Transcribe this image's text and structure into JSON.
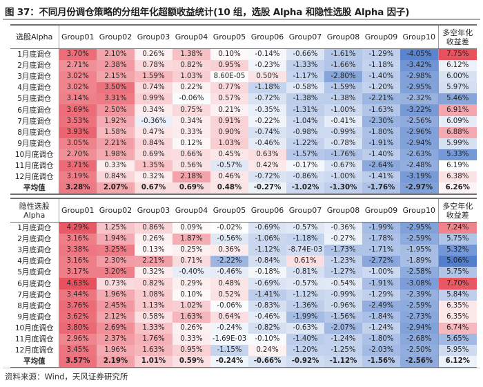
{
  "title": "图 37：不同月份调仓策略的分组年化超额收益统计(10 组，选股 Alpha 和隐性选股 Alpha 因子)",
  "source": "资料来源：Wind，天风证券研究所",
  "colors": {
    "positive_max": "#e8525f",
    "negative_max": "#4a78c9",
    "neutral": "#ffffff"
  },
  "tables": [
    {
      "corner": "选股Alpha",
      "columns": [
        "Group01",
        "Group02",
        "Group03",
        "Group04",
        "Group05",
        "Group06",
        "Group07",
        "Group08",
        "Group09",
        "Group10",
        "多空年化收益差"
      ],
      "rows": [
        {
          "label": "1月底调仓",
          "values": [
            "3.70%",
            "2.10%",
            "0.26%",
            "1.38%",
            "0.10%",
            "-0.14%",
            "-0.66%",
            "-1.61%",
            "-1.29%",
            "-4.05%",
            "7.75%"
          ]
        },
        {
          "label": "2月底调仓",
          "values": [
            "2.71%",
            "2.38%",
            "0.78%",
            "0.82%",
            "0.95%",
            "-0.23%",
            "-1.33%",
            "-1.66%",
            "-1.18%",
            "-3.42%",
            "6.12%"
          ]
        },
        {
          "label": "3月底调仓",
          "values": [
            "3.02%",
            "2.15%",
            "1.59%",
            "1.03%",
            "8.60E-05",
            "0.50%",
            "-1.17%",
            "-2.80%",
            "-1.40%",
            "-2.98%",
            "6.00%"
          ]
        },
        {
          "label": "4月底调仓",
          "values": [
            "3.02%",
            "3.50%",
            "0.74%",
            "0.22%",
            "0.77%",
            "-1.18%",
            "-0.58%",
            "-1.59%",
            "-1.20%",
            "-2.95%",
            "5.97%"
          ]
        },
        {
          "label": "5月底调仓",
          "values": [
            "3.14%",
            "3.31%",
            "0.99%",
            "-0.06%",
            "0.57%",
            "-0.72%",
            "-1.38%",
            "-1.38%",
            "-2.21%",
            "-2.32%",
            "5.46%"
          ]
        },
        {
          "label": "6月底调仓",
          "values": [
            "3.69%",
            "2.50%",
            "0.34%",
            "0.75%",
            "0.21%",
            "-0.35%",
            "-1.31%",
            "-1.00%",
            "-1.63%",
            "-3.22%",
            "6.91%"
          ]
        },
        {
          "label": "7月底调仓",
          "values": [
            "3.53%",
            "1.92%",
            "-0.36%",
            "0.34%",
            "0.91%",
            "-0.22%",
            "-1.04%",
            "-0.41%",
            "-2.30%",
            "-2.56%",
            "6.09%"
          ]
        },
        {
          "label": "8月底调仓",
          "values": [
            "3.93%",
            "1.58%",
            "0.47%",
            "0.33%",
            "0.90%",
            "-0.74%",
            "-0.98%",
            "-0.99%",
            "-1.80%",
            "-2.96%",
            "6.88%"
          ]
        },
        {
          "label": "9月底调仓",
          "values": [
            "3.05%",
            "2.21%",
            "0.84%",
            "0.12%",
            "1.03%",
            "-0.46%",
            "-1.22%",
            "-0.78%",
            "-1.91%",
            "-2.94%",
            "5.99%"
          ]
        },
        {
          "label": "10月底调仓",
          "values": [
            "2.70%",
            "1.98%",
            "0.69%",
            "0.66%",
            "0.45%",
            "0.63%",
            "-1.57%",
            "-1.76%",
            "-1.40%",
            "-2.63%",
            "5.33%"
          ]
        },
        {
          "label": "11月底调仓",
          "values": [
            "3.71%",
            "0.33%",
            "1.35%",
            "0.56%",
            "-0.57%",
            "0.42%",
            "-0.17%",
            "-0.67%",
            "-2.64%",
            "-2.48%",
            "6.19%"
          ]
        },
        {
          "label": "12月底调仓",
          "values": [
            "3.19%",
            "0.84%",
            "0.32%",
            "2.18%",
            "0.46%",
            "-0.72%",
            "-0.86%",
            "-1.00%",
            "-1.41%",
            "-3.19%",
            "6.38%"
          ]
        }
      ],
      "average": {
        "label": "平均值",
        "values": [
          "3.28%",
          "2.07%",
          "0.67%",
          "0.69%",
          "0.48%",
          "-0.27%",
          "-1.02%",
          "-1.30%",
          "-1.76%",
          "-2.97%",
          "6.26%"
        ]
      }
    },
    {
      "corner": "隐性选股Alpha",
      "columns": [
        "Group01",
        "Group02",
        "Group03",
        "Group04",
        "Group05",
        "Group06",
        "Group07",
        "Group08",
        "Group09",
        "Group10",
        "多空年化收益差"
      ],
      "rows": [
        {
          "label": "1月底调仓",
          "values": [
            "4.29%",
            "1.25%",
            "0.86%",
            "0.09%",
            "-0.02%",
            "-0.69%",
            "-0.57%",
            "-0.36%",
            "-1.99%",
            "-2.95%",
            "7.24%"
          ]
        },
        {
          "label": "2月底调仓",
          "values": [
            "3.16%",
            "1.94%",
            "0.26%",
            "1.87%",
            "-0.56%",
            "-1.06%",
            "-1.18%",
            "-0.27%",
            "-1.78%",
            "-2.59%",
            "5.75%"
          ]
        },
        {
          "label": "3月底调仓",
          "values": [
            "3.38%",
            "3.25%",
            "0.13%",
            "0.25%",
            "0.36%",
            "-1.12%",
            "-8.74E-03",
            "-1.73%",
            "-1.71%",
            "-1.95%",
            "5.32%"
          ]
        },
        {
          "label": "4月底调仓",
          "values": [
            "3.16%",
            "2.30%",
            "2.21%",
            "0.71%",
            "-2.22%",
            "-0.84%",
            "0.61%",
            "-1.23%",
            "-2.72%",
            "-1.89%",
            "5.06%"
          ]
        },
        {
          "label": "5月底调仓",
          "values": [
            "3.17%",
            "3.20%",
            "0.32%",
            "-0.40%",
            "-0.46%",
            "-0.18%",
            "-0.81%",
            "-1.27%",
            "-1.00%",
            "-2.58%",
            "5.75%"
          ]
        },
        {
          "label": "6月底调仓",
          "values": [
            "4.63%",
            "0.73%",
            "0.82%",
            "0.29%",
            "0.48%",
            "-0.69%",
            "-0.57%",
            "-0.54%",
            "-1.91%",
            "-3.08%",
            "7.70%"
          ]
        },
        {
          "label": "7月底调仓",
          "values": [
            "3.44%",
            "1.96%",
            "1.08%",
            "0.10%",
            "0.52%",
            "-1.41%",
            "-1.12%",
            "-0.99%",
            "-1.29%",
            "-2.39%",
            "5.84%"
          ]
        },
        {
          "label": "8月底调仓",
          "values": [
            "3.76%",
            "2.45%",
            "1.13%",
            "1.02%",
            "-0.06%",
            "-0.83%",
            "-1.36%",
            "-0.96%",
            "-2.49%",
            "-2.59%",
            "6.35%"
          ]
        },
        {
          "label": "9月底调仓",
          "values": [
            "3.62%",
            "2.12%",
            "0.58%",
            "1.63%",
            "0.64%",
            "-0.46%",
            "-1.99%",
            "-1.56%",
            "-1.84%",
            "-2.73%",
            "6.35%"
          ]
        },
        {
          "label": "10月底调仓",
          "values": [
            "3.80%",
            "2.69%",
            "1.33%",
            "0.26%",
            "-0.24%",
            "-0.82%",
            "-0.63%",
            "-2.07%",
            "-1.24%",
            "-2.94%",
            "6.74%"
          ]
        },
        {
          "label": "11月底调仓",
          "values": [
            "2.96%",
            "2.37%",
            "1.76%",
            "0.33%",
            "-1.69E-03",
            "-0.10%",
            "-1.40%",
            "-1.24%",
            "-1.80%",
            "-2.68%",
            "5.65%"
          ]
        },
        {
          "label": "12月底调仓",
          "values": [
            "3.45%",
            "1.96%",
            "1.63%",
            "0.95%",
            "-1.15%",
            "0.24%",
            "-1.20%",
            "-1.25%",
            "-2.03%",
            "-2.50%",
            "5.95%"
          ]
        }
      ],
      "average": {
        "label": "平均值",
        "values": [
          "3.57%",
          "2.19%",
          "1.01%",
          "0.59%",
          "-0.24%",
          "-0.66%",
          "-0.92%",
          "-1.12%",
          "-1.56%",
          "-2.56%",
          "6.12%"
        ]
      }
    }
  ]
}
